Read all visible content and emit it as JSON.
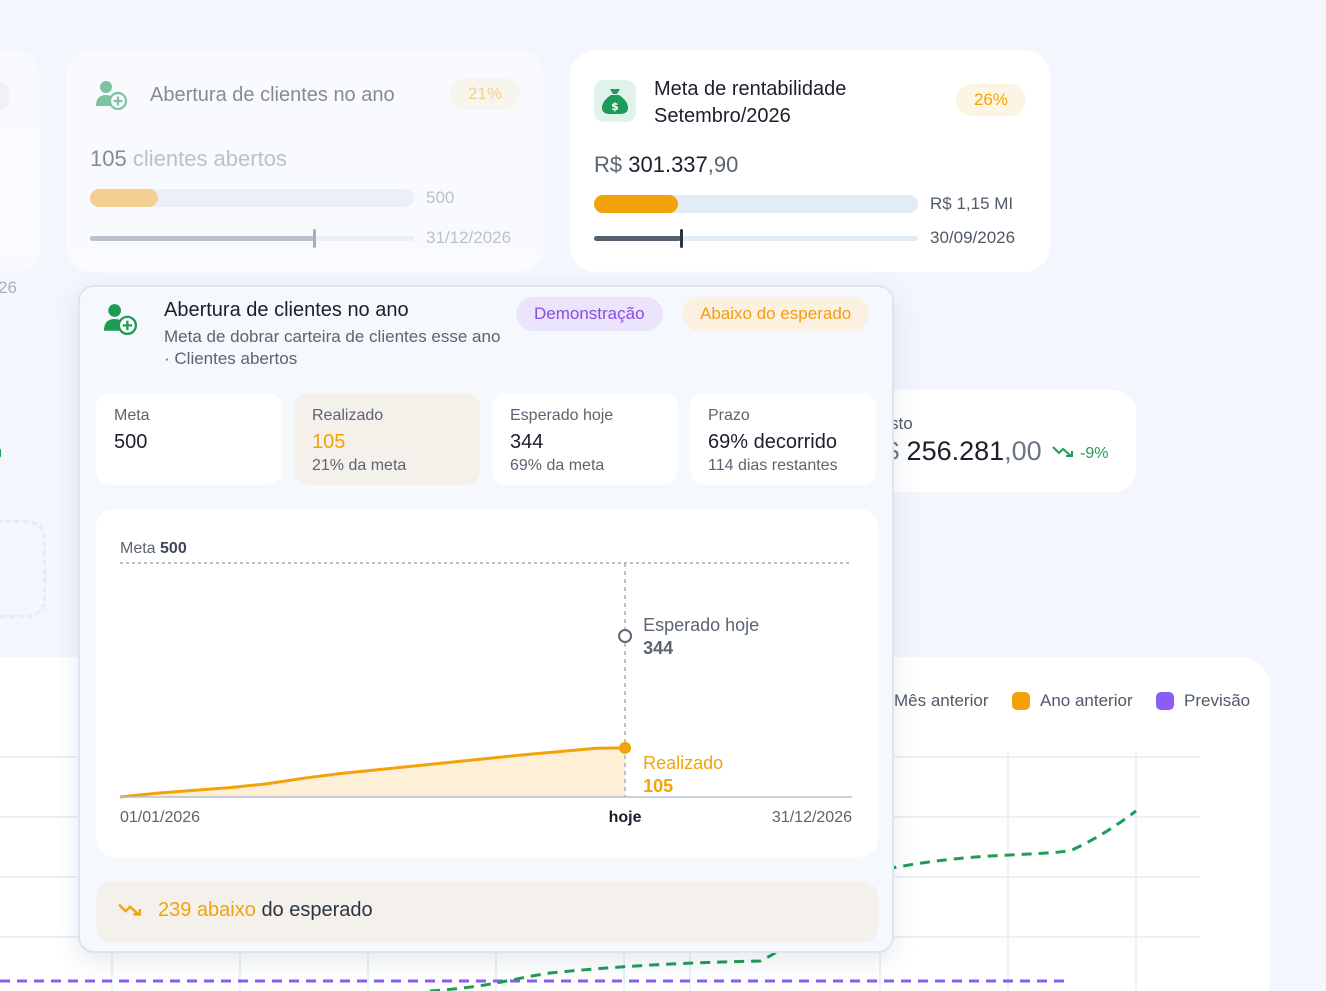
{
  "left_card": {
    "date_fragment": "26"
  },
  "card_clients": {
    "title": "Abertura de clientes no ano",
    "badge": "21%",
    "count": "105",
    "count_suffix": "clientes abertos",
    "goal": "500",
    "progress": 0.21,
    "time_progress": 0.69,
    "deadline": "31/12/2026",
    "icon": "user-plus-icon"
  },
  "card_profit": {
    "title_line1": "Meta de rentabilidade",
    "title_line2": "Setembro/2026",
    "badge": "26%",
    "currency": "R$",
    "amount_int": "301.337",
    "amount_dec": ",90",
    "goal": "R$ 1,15 MI",
    "progress": 0.26,
    "time_progress": 0.27,
    "deadline": "30/09/2026",
    "icon": "money-bag-icon"
  },
  "card_cost": {
    "label_fragment": "sto",
    "value_prefix": "$",
    "value_int": "256.281",
    "value_dec": ",00",
    "delta": "-9%"
  },
  "bg_chart": {
    "legend": [
      {
        "label": "Mês anterior",
        "color": ""
      },
      {
        "label": "Ano anterior",
        "color": "#f3a20a"
      },
      {
        "label": "Previsão",
        "color": "#8b5cf6"
      }
    ]
  },
  "popover": {
    "title": "Abertura de clientes no ano",
    "subtitle": "Meta de dobrar carteira de clientes esse ano · Clientes abertos",
    "tag_demo": "Demonstração",
    "tag_status": "Abaixo do esperado",
    "stats": [
      {
        "label": "Meta",
        "value": "500",
        "sub": ""
      },
      {
        "label": "Realizado",
        "value": "105",
        "sub": "21% da meta"
      },
      {
        "label": "Esperado hoje",
        "value": "344",
        "sub": "69% da meta"
      },
      {
        "label": "Prazo",
        "value": "69% decorrido",
        "sub": "114 dias restantes"
      }
    ],
    "footer_value": "239 abaixo",
    "footer_text": "do esperado"
  },
  "chart_data": {
    "type": "area",
    "goal_label": "Meta",
    "goal_value": 500,
    "ylim": [
      0,
      500
    ],
    "x_start": "01/01/2026",
    "x_end": "31/12/2026",
    "x_today": "hoje",
    "today_fraction": 0.69,
    "expected_label": "Esperado hoje",
    "expected_value": 344,
    "realized_label": "Realizado",
    "realized_value": 105,
    "series": [
      {
        "x_fraction": [
          0,
          0.05,
          0.1,
          0.15,
          0.2,
          0.25,
          0.3,
          0.35,
          0.4,
          0.45,
          0.5,
          0.55,
          0.6,
          0.65,
          0.69
        ],
        "values": [
          0,
          8,
          14,
          20,
          28,
          40,
          50,
          58,
          66,
          74,
          82,
          90,
          97,
          104,
          105
        ]
      }
    ]
  }
}
